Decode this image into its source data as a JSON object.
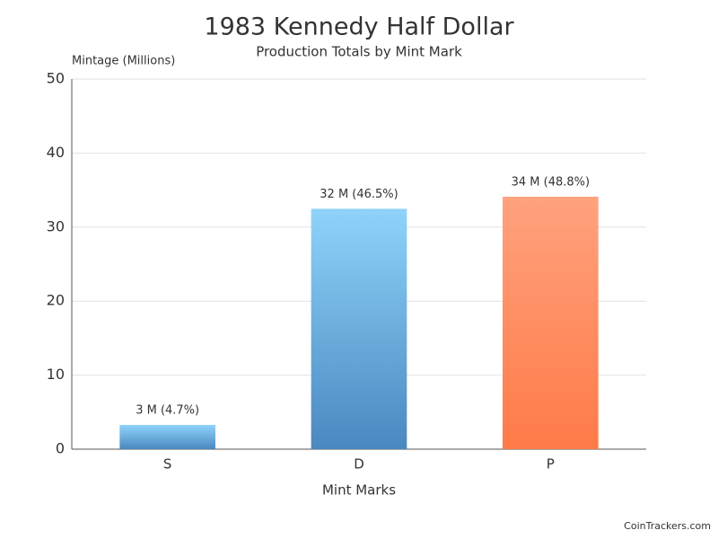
{
  "chart_data": {
    "type": "bar",
    "title": "1983 Kennedy Half Dollar",
    "subtitle": "Production Totals by Mint Mark",
    "y_axis_label": "Mintage (Millions)",
    "x_axis_label": "Mint Marks",
    "categories": [
      "S",
      "D",
      "P"
    ],
    "values": [
      3.28,
      32.47,
      34.1
    ],
    "value_labels": [
      "3 M (4.7%)",
      "32 M (46.5%)",
      "34 M (48.8%)"
    ],
    "gradients": [
      [
        "#8fd3fa",
        "#4a88c0"
      ],
      [
        "#8fd3fa",
        "#4a88c0"
      ],
      [
        "#ffa27e",
        "#ff7a48"
      ]
    ],
    "ylim": [
      0,
      50
    ],
    "yticks": [
      0,
      10,
      20,
      30,
      40,
      50
    ],
    "grid": true,
    "credit": "CoinTrackers.com"
  }
}
